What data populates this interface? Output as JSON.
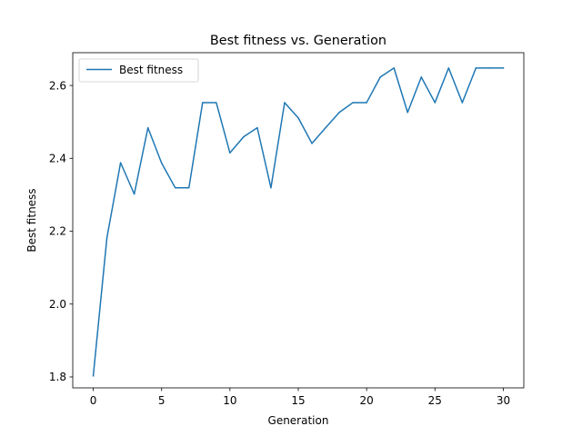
{
  "chart_data": {
    "type": "line",
    "title": "Best fitness vs. Generation",
    "xlabel": "Generation",
    "ylabel": "Best fitness",
    "xlim": [
      -1.5,
      31.5
    ],
    "ylim": [
      1.77,
      2.69
    ],
    "xticks": [
      0,
      5,
      10,
      15,
      20,
      25,
      30
    ],
    "yticks": [
      1.8,
      2.0,
      2.2,
      2.4,
      2.6
    ],
    "xtick_labels": [
      "0",
      "5",
      "10",
      "15",
      "20",
      "25",
      "30"
    ],
    "ytick_labels": [
      "1.8",
      "2.0",
      "2.2",
      "2.4",
      "2.6"
    ],
    "grid": false,
    "legend_position": "top-left",
    "series": [
      {
        "name": "Best fitness",
        "color": "#1f77b4",
        "x": [
          0,
          1,
          2,
          3,
          4,
          5,
          6,
          7,
          8,
          9,
          10,
          11,
          12,
          13,
          14,
          15,
          16,
          17,
          18,
          19,
          20,
          21,
          22,
          23,
          24,
          25,
          26,
          27,
          28,
          29,
          30
        ],
        "y": [
          1.803,
          2.182,
          2.388,
          2.302,
          2.484,
          2.387,
          2.319,
          2.319,
          2.553,
          2.553,
          2.415,
          2.459,
          2.484,
          2.319,
          2.553,
          2.511,
          2.441,
          2.484,
          2.526,
          2.553,
          2.553,
          2.623,
          2.648,
          2.526,
          2.623,
          2.553,
          2.648,
          2.553,
          2.648,
          2.648,
          2.648
        ]
      }
    ]
  }
}
